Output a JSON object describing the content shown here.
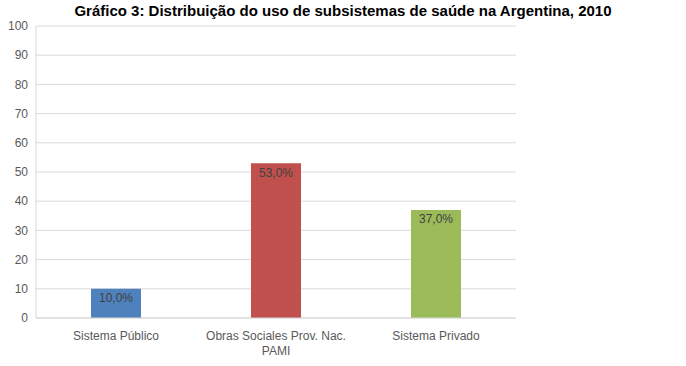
{
  "chart_data": {
    "type": "bar",
    "title": "Gráfico 3: Distribuição do uso de subsistemas de saúde na Argentina, 2010",
    "categories": [
      "Sistema Público",
      "Obras Sociales Prov. Nac. PAMI",
      "Sistema Privado"
    ],
    "values": [
      10,
      53,
      37
    ],
    "value_labels": [
      "10,0%",
      "53,0%",
      "37,0%"
    ],
    "colors": [
      "#4f81bd",
      "#c0504d",
      "#9bbb59"
    ],
    "ylim": [
      0,
      100
    ],
    "yticks": [
      0,
      10,
      20,
      30,
      40,
      50,
      60,
      70,
      80,
      90,
      100
    ],
    "grid": true,
    "data_labels": true
  }
}
